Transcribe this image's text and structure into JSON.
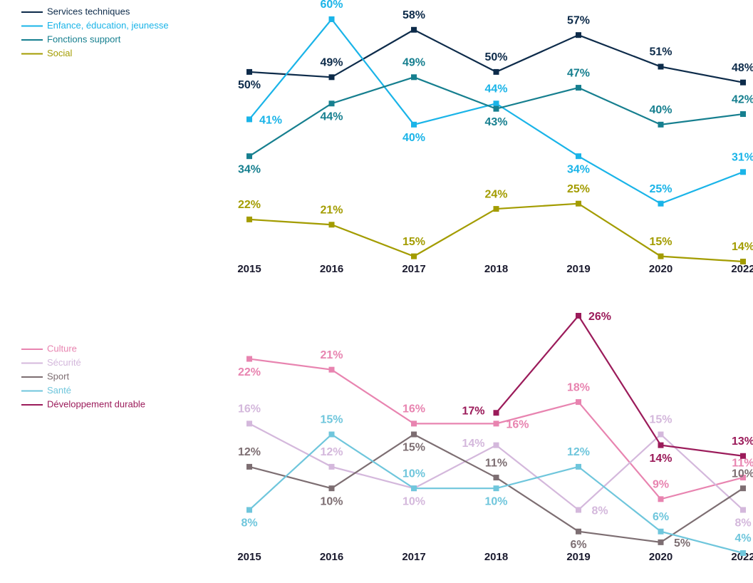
{
  "chart_data": [
    {
      "type": "line",
      "categories": [
        "2015",
        "2016",
        "2017",
        "2018",
        "2019",
        "2020",
        "2022"
      ],
      "series": [
        {
          "name": "Services techniques",
          "color": "#0d2b4a",
          "values": [
            50,
            49,
            58,
            50,
            57,
            51,
            48
          ],
          "value_labels": [
            "50%",
            "49%",
            "58%",
            "50%",
            "57%",
            "51%",
            "48%"
          ]
        },
        {
          "name": "Enfance, éducation, jeunesse",
          "color": "#1ab4e8",
          "values": [
            41,
            60,
            40,
            44,
            34,
            25,
            31
          ],
          "value_labels": [
            "41%",
            "60%",
            "40%",
            "44%",
            "34%",
            "25%",
            "31%"
          ]
        },
        {
          "name": "Fonctions support",
          "color": "#167f8f",
          "values": [
            34,
            44,
            49,
            43,
            47,
            40,
            42
          ],
          "value_labels": [
            "34%",
            "44%",
            "49%",
            "43%",
            "47%",
            "40%",
            "42%"
          ]
        },
        {
          "name": "Social",
          "color": "#a39c00",
          "values": [
            22,
            21,
            15,
            24,
            25,
            15,
            14
          ],
          "value_labels": [
            "22%",
            "21%",
            "15%",
            "24%",
            "25%",
            "15%",
            "14%"
          ]
        }
      ]
    },
    {
      "type": "line",
      "categories": [
        "2015",
        "2016",
        "2017",
        "2018",
        "2019",
        "2020",
        "2022"
      ],
      "series": [
        {
          "name": "Culture",
          "color": "#e884b0",
          "values": [
            22,
            21,
            16,
            16,
            18,
            9,
            11
          ],
          "value_labels": [
            "22%",
            "21%",
            "16%",
            "16%",
            "18%",
            "9%",
            "11%"
          ]
        },
        {
          "name": "Sécurité",
          "color": "#d4b8dc",
          "values": [
            16,
            12,
            10,
            14,
            8,
            15,
            8
          ],
          "value_labels": [
            "16%",
            "12%",
            "10%",
            "14%",
            "8%",
            "15%",
            "8%"
          ]
        },
        {
          "name": "Sport",
          "color": "#7d6e72",
          "values": [
            12,
            10,
            15,
            11,
            6,
            5,
            10
          ],
          "value_labels": [
            "12%",
            "10%",
            "15%",
            "11%",
            "6%",
            "5%",
            "10%"
          ]
        },
        {
          "name": "Santé",
          "color": "#6fc6dc",
          "values": [
            8,
            15,
            10,
            10,
            12,
            6,
            4
          ],
          "value_labels": [
            "8%",
            "15%",
            "10%",
            "10%",
            "12%",
            "6%",
            "4%"
          ]
        },
        {
          "name": "Développement durable",
          "color": "#9b1b5a",
          "values": [
            null,
            null,
            null,
            17,
            26,
            14,
            13
          ],
          "value_labels": [
            null,
            null,
            null,
            "17%",
            "26%",
            "14%",
            "13%"
          ]
        }
      ]
    }
  ]
}
